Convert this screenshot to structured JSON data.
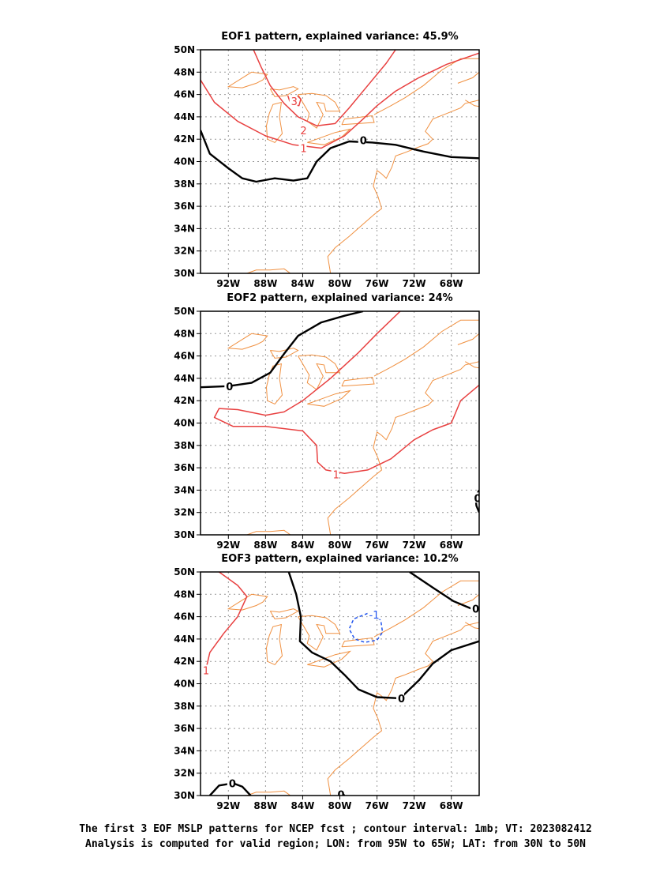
{
  "maps": [
    {
      "title": "EOF1 pattern, explained variance: 45.9%",
      "contours": [
        {
          "value": "3",
          "color": "#e84040",
          "dashed": false,
          "points": [
            [
              -85.6,
              45.9
            ],
            [
              -85.4,
              45.4
            ],
            [
              -85.0,
              45.1
            ],
            [
              -84.4,
              45.0
            ],
            [
              -84.2,
              45.6
            ],
            [
              -84.6,
              45.9
            ]
          ],
          "label": {
            "lon": -85.0,
            "lat": 45.4,
            "text": "3"
          }
        },
        {
          "value": "2",
          "color": "#e84040",
          "dashed": false,
          "points": [
            [
              -89.3,
              50.0
            ],
            [
              -88.5,
              48.5
            ],
            [
              -87.5,
              46.8
            ],
            [
              -86.0,
              45.2
            ],
            [
              -84.5,
              44.0
            ],
            [
              -82.5,
              43.2
            ],
            [
              -80.5,
              43.4
            ],
            [
              -79.0,
              44.8
            ],
            [
              -77.0,
              46.8
            ],
            [
              -75.0,
              48.8
            ],
            [
              -74.0,
              50.0
            ]
          ],
          "label": {
            "lon": -84.0,
            "lat": 42.8,
            "text": "2"
          }
        },
        {
          "value": "1",
          "color": "#e84040",
          "dashed": false,
          "points": [
            [
              -95.0,
              47.3
            ],
            [
              -93.5,
              45.3
            ],
            [
              -91.0,
              43.6
            ],
            [
              -88.0,
              42.3
            ],
            [
              -85.0,
              41.5
            ],
            [
              -82.0,
              41.2
            ],
            [
              -79.5,
              42.3
            ],
            [
              -77.5,
              43.8
            ],
            [
              -76.0,
              45.0
            ],
            [
              -74.0,
              46.3
            ],
            [
              -71.5,
              47.5
            ],
            [
              -68.5,
              48.7
            ],
            [
              -65.0,
              49.7
            ]
          ],
          "label": {
            "lon": -84.0,
            "lat": 41.2,
            "text": "1"
          }
        },
        {
          "value": "0",
          "color": "#000000",
          "dashed": false,
          "points": [
            [
              -95.0,
              42.8
            ],
            [
              -94.0,
              40.7
            ],
            [
              -92.0,
              39.4
            ],
            [
              -90.5,
              38.5
            ],
            [
              -89.0,
              38.2
            ],
            [
              -87.0,
              38.5
            ],
            [
              -85.0,
              38.3
            ],
            [
              -83.5,
              38.5
            ],
            [
              -82.5,
              40.0
            ],
            [
              -81.0,
              41.2
            ],
            [
              -79.0,
              41.8
            ],
            [
              -76.5,
              41.7
            ],
            [
              -74.0,
              41.5
            ],
            [
              -71.0,
              40.9
            ],
            [
              -68.0,
              40.4
            ],
            [
              -65.0,
              40.3
            ]
          ],
          "label": {
            "lon": -77.6,
            "lat": 41.9,
            "text": "0"
          }
        }
      ]
    },
    {
      "title": "EOF2 pattern, explained variance: 24%",
      "contours": [
        {
          "value": "0",
          "color": "#000000",
          "dashed": false,
          "points": [
            [
              -95.0,
              43.2
            ],
            [
              -92.0,
              43.3
            ],
            [
              -89.5,
              43.6
            ],
            [
              -87.5,
              44.5
            ],
            [
              -86.0,
              46.2
            ],
            [
              -84.5,
              47.8
            ],
            [
              -82.0,
              49.0
            ],
            [
              -79.5,
              49.6
            ],
            [
              -77.5,
              50.0
            ]
          ],
          "label": {
            "lon": -92.0,
            "lat": 43.3,
            "text": "0"
          }
        },
        {
          "value": "1",
          "color": "#e84040",
          "dashed": false,
          "points": [
            [
              -73.5,
              50.0
            ],
            [
              -76.0,
              48.0
            ],
            [
              -78.0,
              46.3
            ],
            [
              -81.0,
              44.0
            ],
            [
              -84.0,
              42.0
            ],
            [
              -86.0,
              41.0
            ],
            [
              -88.0,
              40.7
            ],
            [
              -91.0,
              41.2
            ],
            [
              -93.0,
              41.3
            ],
            [
              -93.5,
              40.5
            ],
            [
              -91.5,
              39.7
            ],
            [
              -88.0,
              39.7
            ],
            [
              -84.0,
              39.3
            ],
            [
              -82.5,
              38.0
            ],
            [
              -82.4,
              36.5
            ],
            [
              -81.5,
              35.8
            ],
            [
              -79.5,
              35.5
            ],
            [
              -77.0,
              35.8
            ],
            [
              -74.5,
              36.8
            ],
            [
              -72.0,
              38.5
            ],
            [
              -70.0,
              39.4
            ],
            [
              -68.0,
              40.0
            ],
            [
              -67.0,
              42.0
            ],
            [
              -65.0,
              43.4
            ]
          ],
          "label": {
            "lon": -80.5,
            "lat": 35.4,
            "text": "1"
          }
        },
        {
          "value": "0",
          "color": "#000000",
          "dashed": false,
          "points": [
            [
              -65.0,
              34.0
            ],
            [
              -65.4,
              33.4
            ],
            [
              -65.3,
              32.6
            ],
            [
              -65.0,
              32.0
            ]
          ],
          "label": {
            "lon": -65.3,
            "lat": 33.3,
            "text": "0"
          }
        }
      ]
    },
    {
      "title": "EOF3 pattern, explained variance: 10.2%",
      "contours": [
        {
          "value": "1",
          "color": "#e84040",
          "dashed": false,
          "points": [
            [
              -93.0,
              50.0
            ],
            [
              -91.0,
              48.8
            ],
            [
              -90.0,
              47.8
            ],
            [
              -91.0,
              46.0
            ],
            [
              -92.5,
              44.5
            ],
            [
              -94.0,
              42.8
            ],
            [
              -94.5,
              41.0
            ]
          ],
          "label": {
            "lon": -94.5,
            "lat": 41.2,
            "text": "1"
          }
        },
        {
          "value": "0",
          "color": "#000000",
          "dashed": false,
          "points": [
            [
              -85.5,
              50.0
            ],
            [
              -84.7,
              48.0
            ],
            [
              -84.2,
              46.0
            ],
            [
              -84.3,
              43.8
            ],
            [
              -83.0,
              42.8
            ],
            [
              -81.0,
              42.0
            ],
            [
              -79.5,
              40.8
            ],
            [
              -78.0,
              39.5
            ],
            [
              -76.0,
              38.8
            ],
            [
              -73.5,
              38.7
            ],
            [
              -71.5,
              40.3
            ],
            [
              -70.0,
              41.8
            ],
            [
              -68.0,
              43.0
            ],
            [
              -65.0,
              43.8
            ]
          ],
          "label": {
            "lon": -73.5,
            "lat": 38.7,
            "text": "0"
          }
        },
        {
          "value": "0",
          "color": "#000000",
          "dashed": false,
          "points": [
            [
              -72.5,
              50.0
            ],
            [
              -70.0,
              48.6
            ],
            [
              -67.8,
              47.4
            ],
            [
              -65.5,
              46.6
            ]
          ],
          "label": {
            "lon": -65.5,
            "lat": 46.7,
            "text": "0"
          }
        },
        {
          "value": "-1",
          "color": "#2255ee",
          "dashed": true,
          "points": [
            [
              -77.0,
              46.3
            ],
            [
              -78.5,
              45.8
            ],
            [
              -79.0,
              44.9
            ],
            [
              -78.4,
              44.0
            ],
            [
              -77.3,
              43.7
            ],
            [
              -76.0,
              43.9
            ],
            [
              -75.4,
              44.6
            ],
            [
              -75.6,
              45.7
            ],
            [
              -76.6,
              46.2
            ]
          ],
          "label": {
            "lon": -76.6,
            "lat": 46.2,
            "text": "-1"
          }
        },
        {
          "value": "0",
          "color": "#000000",
          "dashed": false,
          "points": [
            [
              -94.0,
              30.0
            ],
            [
              -93.0,
              30.9
            ],
            [
              -91.5,
              31.1
            ],
            [
              -90.5,
              30.8
            ],
            [
              -89.6,
              30.0
            ]
          ],
          "label": {
            "lon": -91.7,
            "lat": 31.1,
            "text": "0"
          }
        },
        {
          "value": "0",
          "color": "#000000",
          "dashed": false,
          "points": [
            [
              -80.3,
              30.0
            ],
            [
              -79.9,
              30.3
            ],
            [
              -79.5,
              30.0
            ]
          ],
          "label": {
            "lon": -80.0,
            "lat": 30.1,
            "text": "0"
          }
        }
      ]
    }
  ],
  "axes": {
    "lon_ticks": [
      {
        "value": -92,
        "label": "92W"
      },
      {
        "value": -88,
        "label": "88W"
      },
      {
        "value": -84,
        "label": "84W"
      },
      {
        "value": -80,
        "label": "80W"
      },
      {
        "value": -76,
        "label": "76W"
      },
      {
        "value": -72,
        "label": "72W"
      },
      {
        "value": -68,
        "label": "68W"
      }
    ],
    "lat_ticks": [
      {
        "value": 30,
        "label": "30N"
      },
      {
        "value": 32,
        "label": "32N"
      },
      {
        "value": 34,
        "label": "34N"
      },
      {
        "value": 36,
        "label": "36N"
      },
      {
        "value": 38,
        "label": "38N"
      },
      {
        "value": 40,
        "label": "40N"
      },
      {
        "value": 42,
        "label": "42N"
      },
      {
        "value": 44,
        "label": "44N"
      },
      {
        "value": 46,
        "label": "46N"
      },
      {
        "value": 48,
        "label": "48N"
      },
      {
        "value": 50,
        "label": "50N"
      }
    ],
    "lon_range": [
      -95,
      -65
    ],
    "lat_range": [
      30,
      50
    ]
  },
  "coastline_color": "#f09040",
  "coastlines": [
    [
      [
        -90.5,
        46.6
      ],
      [
        -89.0,
        47.0
      ],
      [
        -88.3,
        47.3
      ],
      [
        -87.8,
        47.8
      ],
      [
        -89.5,
        48.0
      ],
      [
        -92.0,
        46.7
      ],
      [
        -90.5,
        46.6
      ]
    ],
    [
      [
        -87.5,
        46.5
      ],
      [
        -86.5,
        46.4
      ],
      [
        -85.0,
        46.7
      ],
      [
        -84.5,
        46.5
      ],
      [
        -85.8,
        45.9
      ],
      [
        -87.0,
        45.8
      ],
      [
        -87.5,
        46.5
      ]
    ],
    [
      [
        -87.8,
        42.0
      ],
      [
        -87.9,
        43.2
      ],
      [
        -87.6,
        44.3
      ],
      [
        -87.2,
        45.1
      ],
      [
        -86.3,
        45.3
      ],
      [
        -86.5,
        44.0
      ],
      [
        -86.2,
        42.5
      ],
      [
        -87.0,
        41.7
      ],
      [
        -87.8,
        42.0
      ]
    ],
    [
      [
        -84.5,
        46.0
      ],
      [
        -83.0,
        46.1
      ],
      [
        -81.5,
        45.9
      ],
      [
        -80.5,
        45.3
      ],
      [
        -80.0,
        44.5
      ],
      [
        -81.5,
        44.5
      ],
      [
        -81.7,
        45.2
      ],
      [
        -82.5,
        45.3
      ],
      [
        -81.8,
        44.2
      ],
      [
        -82.5,
        43.0
      ],
      [
        -83.5,
        43.6
      ],
      [
        -83.3,
        44.3
      ],
      [
        -84.5,
        46.0
      ]
    ],
    [
      [
        -83.5,
        41.7
      ],
      [
        -81.7,
        41.5
      ],
      [
        -79.8,
        42.2
      ],
      [
        -78.9,
        42.9
      ],
      [
        -80.5,
        42.6
      ],
      [
        -82.5,
        42.0
      ],
      [
        -83.5,
        41.7
      ]
    ],
    [
      [
        -79.8,
        43.3
      ],
      [
        -78.0,
        43.4
      ],
      [
        -76.3,
        43.5
      ],
      [
        -76.5,
        44.1
      ],
      [
        -77.5,
        44.0
      ],
      [
        -79.5,
        43.8
      ],
      [
        -79.8,
        43.3
      ]
    ],
    [
      [
        -76.3,
        44.2
      ],
      [
        -74.5,
        45.0
      ],
      [
        -73.0,
        45.7
      ],
      [
        -71.0,
        46.8
      ],
      [
        -69.0,
        48.2
      ],
      [
        -67.0,
        49.2
      ],
      [
        -65.0,
        49.2
      ]
    ],
    [
      [
        -90.0,
        30.0
      ],
      [
        -89.0,
        30.3
      ],
      [
        -87.5,
        30.3
      ],
      [
        -86.0,
        30.4
      ],
      [
        -85.0,
        29.8
      ]
    ],
    [
      [
        -81.0,
        30.0
      ],
      [
        -81.3,
        31.5
      ],
      [
        -80.5,
        32.3
      ],
      [
        -79.0,
        33.3
      ],
      [
        -77.5,
        34.4
      ],
      [
        -76.4,
        35.2
      ],
      [
        -75.5,
        35.8
      ],
      [
        -75.9,
        36.9
      ],
      [
        -76.4,
        37.8
      ],
      [
        -76.0,
        39.2
      ],
      [
        -75.5,
        38.9
      ],
      [
        -75.0,
        38.5
      ],
      [
        -74.4,
        39.5
      ],
      [
        -74.0,
        40.5
      ],
      [
        -73.0,
        40.8
      ],
      [
        -71.5,
        41.3
      ],
      [
        -70.5,
        41.6
      ],
      [
        -70.0,
        42.0
      ],
      [
        -70.8,
        42.7
      ],
      [
        -70.0,
        43.8
      ],
      [
        -68.5,
        44.3
      ],
      [
        -67.0,
        44.8
      ],
      [
        -66.5,
        45.2
      ],
      [
        -65.0,
        45.5
      ]
    ],
    [
      [
        -66.5,
        45.5
      ],
      [
        -65.5,
        45.0
      ],
      [
        -64.8,
        44.9
      ]
    ],
    [
      [
        -67.3,
        47.0
      ],
      [
        -65.7,
        47.5
      ],
      [
        -65.0,
        48.0
      ]
    ]
  ],
  "caption": {
    "line1": "The first 3 EOF MSLP patterns for NCEP fcst ; contour interval: 1mb; VT: 2023082412",
    "line2": "Analysis is computed for valid region; LON: from 95W to 65W; LAT: from 30N to 50N"
  }
}
